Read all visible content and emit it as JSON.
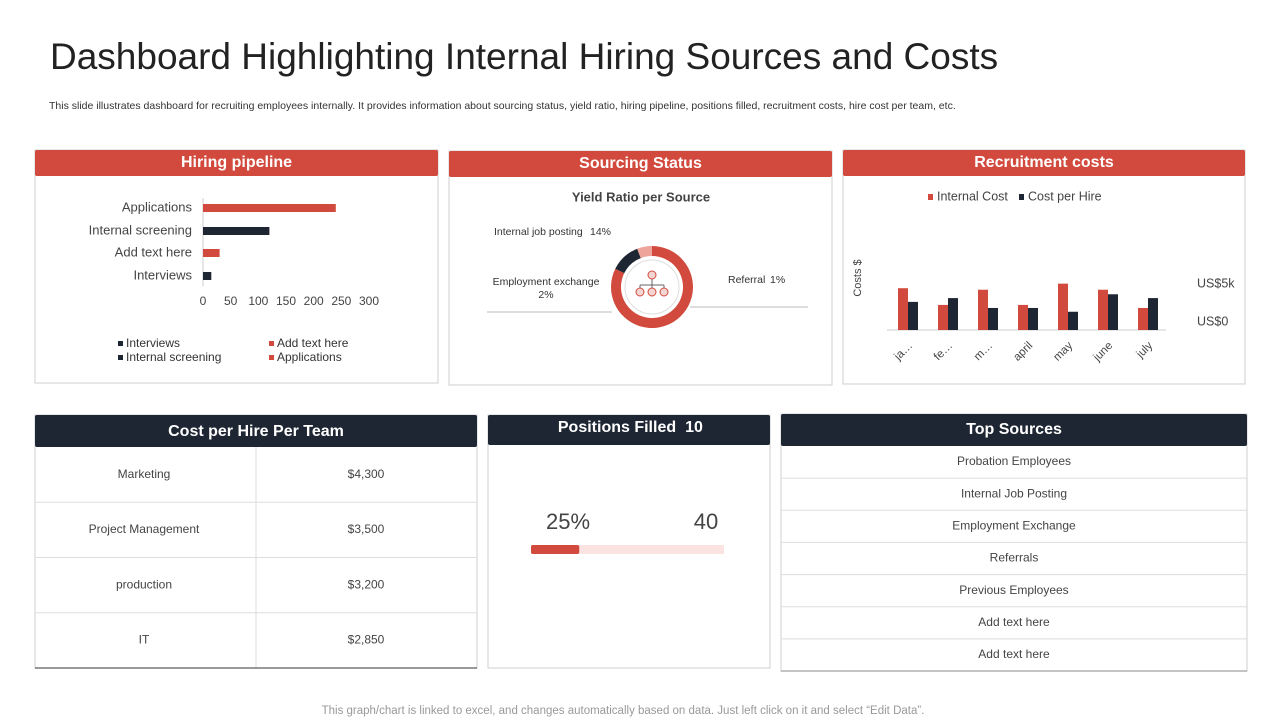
{
  "header": {
    "title": "Dashboard Highlighting Internal Hiring Sources and Costs",
    "subtitle": "This slide illustrates dashboard for recruiting employees internally. It provides information about sourcing status, yield ratio, hiring pipeline, positions filled, recruitment costs, hire cost per team, etc."
  },
  "chart_data": [
    {
      "type": "hbar",
      "title": "Hiring pipeline",
      "categories": [
        "Applications",
        "Internal screening",
        "Add text here",
        "Interviews"
      ],
      "values": [
        240,
        120,
        30,
        15
      ],
      "colors": [
        "#d24a3d",
        "#1e2633",
        "#d24a3d",
        "#1e2633"
      ],
      "xlim": [
        0,
        300
      ],
      "xticks": [
        0,
        50,
        100,
        150,
        200,
        250,
        300
      ]
    },
    {
      "type": "donut",
      "panel_title": "Sourcing Status",
      "title": "Yield Ratio per Source",
      "categories": [
        "Internal job posting",
        "Employment exchange",
        "Referral"
      ],
      "values": [
        14,
        2,
        1
      ],
      "value_labels": [
        "14%",
        "2%",
        "1%"
      ],
      "colors": [
        "#d24a3d",
        "#1e2633",
        "#eea39b"
      ]
    },
    {
      "type": "bar",
      "title": "Recruitment costs",
      "y_label": "Costs $",
      "categories": [
        "ja…",
        "fe…",
        "m…",
        "april",
        "may",
        "june",
        "july"
      ],
      "series": [
        {
          "name": "Internal Cost",
          "color": "#d24a3d",
          "values": [
            5500,
            3300,
            5300,
            3300,
            6100,
            5300,
            2900
          ]
        },
        {
          "name": "Cost per Hire",
          "color": "#1e2633",
          "values": [
            3700,
            4200,
            2900,
            2900,
            2400,
            4700,
            4200
          ]
        }
      ],
      "ylim": [
        0,
        7000
      ],
      "yticks": [
        {
          "value": 0,
          "label": "US$0"
        },
        {
          "value": 5000,
          "label": "US$5k"
        }
      ]
    }
  ],
  "cost_per_team": {
    "title": "Cost per Hire Per Team",
    "rows": [
      [
        "Marketing",
        "$4,300"
      ],
      [
        "Project Management",
        "$3,500"
      ],
      [
        "production",
        "$3,200"
      ],
      [
        "IT",
        "$2,850"
      ]
    ]
  },
  "positions": {
    "title": "Positions Filled",
    "filled": 10,
    "percent": 25,
    "percent_label": "25%",
    "target": 40
  },
  "top_sources": {
    "title": "Top Sources",
    "items": [
      "Probation Employees",
      "Internal Job Posting",
      "Employment Exchange",
      "Referrals",
      "Previous Employees",
      "Add text here",
      "Add text here"
    ]
  },
  "footer": "This graph/chart is linked to excel, and changes automatically based on data. Just left click on it and select “Edit Data”."
}
